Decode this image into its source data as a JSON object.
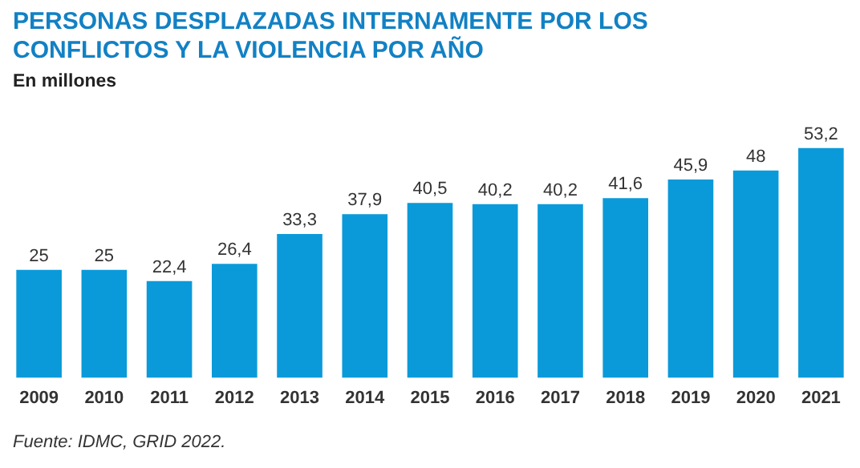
{
  "chart_data": {
    "type": "bar",
    "title": "PERSONAS DESPLAZADAS INTERNAMENTE POR LOS CONFLICTOS Y LA VIOLENCIA POR AÑO",
    "subtitle": "En millones",
    "categories": [
      "2009",
      "2010",
      "2011",
      "2012",
      "2013",
      "2014",
      "2015",
      "2016",
      "2017",
      "2018",
      "2019",
      "2020",
      "2021"
    ],
    "values": [
      25,
      25,
      22.4,
      26.4,
      33.3,
      37.9,
      40.5,
      40.2,
      40.2,
      41.6,
      45.9,
      48,
      53.2
    ],
    "value_labels": [
      "25",
      "25",
      "22,4",
      "26,4",
      "33,3",
      "37,9",
      "40,5",
      "40,2",
      "40,2",
      "41,6",
      "45,9",
      "48",
      "53,2"
    ],
    "color": "#0a9ad9",
    "grid": false,
    "legend": false,
    "tick_labels": "x",
    "annotations": [
      "Fuente: IDMC, GRID 2022."
    ]
  }
}
